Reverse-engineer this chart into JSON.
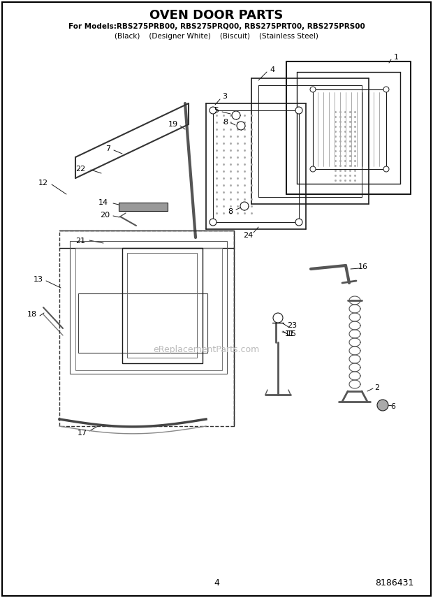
{
  "title": "OVEN DOOR PARTS",
  "subtitle": "For Models:RBS275PRB00, RBS275PRQ00, RBS275PRT00, RBS275PRS00",
  "subtitle2": "(Black)    (Designer White)    (Biscuit)    (Stainless Steel)",
  "page_number": "4",
  "doc_number": "8186431",
  "watermark": "eReplacementParts.com",
  "bg_color": "#ffffff",
  "line_color": "#1a1a1a"
}
